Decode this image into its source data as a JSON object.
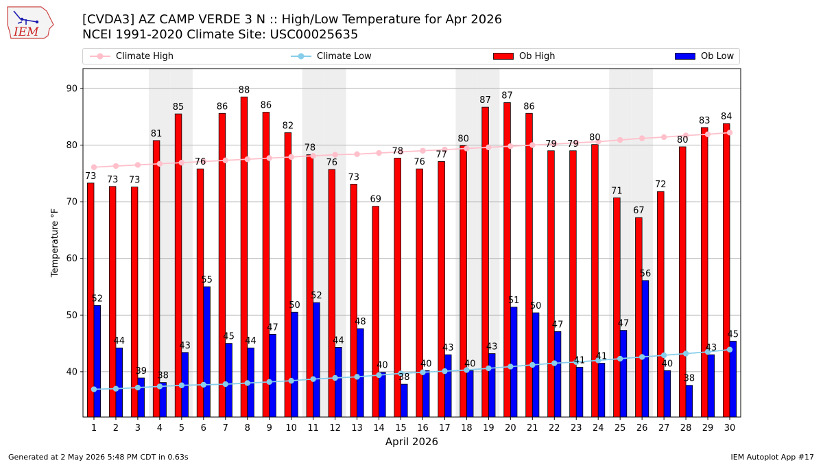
{
  "title": "[CVDA3] AZ CAMP VERDE 3 N :: High/Low Temperature for Apr 2026",
  "subtitle": "NCEI 1991-2020 Climate Site: USC00025635",
  "logo_text": "IEM",
  "footer": {
    "left": "Generated at 2 May 2026 5:48 PM CDT in 0.63s",
    "right": "IEM Autoplot App #17"
  },
  "colors": {
    "ob_high": "#ff0000",
    "ob_low": "#0000ff",
    "climate_high": "#ffc0cb",
    "climate_low": "#87ceeb",
    "weekend_shade": "#eeeeee",
    "grid": "#b0b0b0"
  },
  "chart_data": {
    "type": "bar",
    "xlabel": "April 2026",
    "ylabel": "Temperature °F",
    "ylim": [
      32,
      93.5
    ],
    "yticks": [
      40,
      50,
      60,
      70,
      80,
      90
    ],
    "grid": "horizontal",
    "legend_position": "top",
    "categories": [
      "1",
      "2",
      "3",
      "4",
      "5",
      "6",
      "7",
      "8",
      "9",
      "10",
      "11",
      "12",
      "13",
      "14",
      "15",
      "16",
      "17",
      "18",
      "19",
      "20",
      "21",
      "22",
      "23",
      "24",
      "25",
      "26",
      "27",
      "28",
      "29",
      "30"
    ],
    "shaded_days": [
      4,
      5,
      11,
      12,
      18,
      19,
      25,
      26
    ],
    "series": [
      {
        "name": "Ob High",
        "kind": "bar",
        "values": [
          73.3,
          72.7,
          72.6,
          80.8,
          85.5,
          75.8,
          85.6,
          88.5,
          85.8,
          82.2,
          78.3,
          75.7,
          73.1,
          69.2,
          77.7,
          75.8,
          77.1,
          79.9,
          86.7,
          87.5,
          85.6,
          79.0,
          79.0,
          80.1,
          70.7,
          67.2,
          71.8,
          79.7,
          83.1,
          83.8
        ],
        "labels": [
          "73",
          "73",
          "73",
          "81",
          "85",
          "76",
          "86",
          "88",
          "86",
          "82",
          "78",
          "76",
          "73",
          "69",
          "78",
          "76",
          "77",
          "80",
          "87",
          "87",
          "86",
          "79",
          "79",
          "80",
          "71",
          "67",
          "72",
          "80",
          "83",
          "84"
        ]
      },
      {
        "name": "Ob Low",
        "kind": "bar",
        "values": [
          51.7,
          44.2,
          38.9,
          38.1,
          43.4,
          55.0,
          45.0,
          44.2,
          46.6,
          50.5,
          52.2,
          44.3,
          47.6,
          39.9,
          37.8,
          40.2,
          43.0,
          40.2,
          43.2,
          51.4,
          50.4,
          47.1,
          40.8,
          41.5,
          47.3,
          56.1,
          40.2,
          37.6,
          43.0,
          45.4
        ],
        "labels": [
          "52",
          "44",
          "39",
          "38",
          "43",
          "55",
          "45",
          "44",
          "47",
          "50",
          "52",
          "44",
          "48",
          "40",
          "38",
          "40",
          "43",
          "40",
          "43",
          "51",
          "50",
          "47",
          "41",
          "41",
          "47",
          "56",
          "40",
          "38",
          "43",
          "45"
        ]
      },
      {
        "name": "Climate High",
        "kind": "line",
        "values": [
          76.1,
          76.3,
          76.5,
          76.7,
          76.9,
          77.1,
          77.3,
          77.5,
          77.7,
          77.9,
          78.1,
          78.3,
          78.4,
          78.6,
          78.8,
          79.0,
          79.2,
          79.4,
          79.6,
          79.8,
          80.0,
          80.2,
          80.4,
          80.6,
          80.9,
          81.2,
          81.4,
          81.7,
          81.9,
          82.2
        ]
      },
      {
        "name": "Climate Low",
        "kind": "line",
        "values": [
          36.9,
          37.0,
          37.2,
          37.4,
          37.6,
          37.7,
          37.8,
          38.0,
          38.2,
          38.4,
          38.7,
          38.9,
          39.1,
          39.4,
          39.7,
          39.9,
          40.1,
          40.3,
          40.6,
          40.9,
          41.2,
          41.5,
          41.7,
          42.0,
          42.3,
          42.6,
          42.9,
          43.2,
          43.5,
          43.9
        ]
      }
    ]
  }
}
